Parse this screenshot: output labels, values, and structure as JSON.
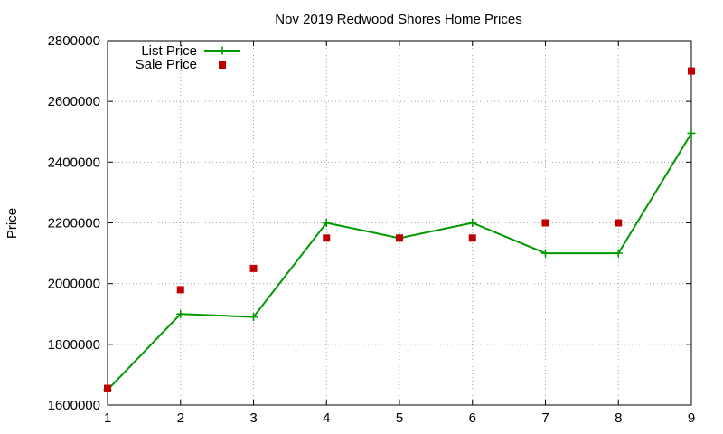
{
  "chart_data": {
    "type": "line",
    "title": "Nov 2019 Redwood Shores Home Prices",
    "xlabel": "",
    "ylabel": "Price",
    "x": [
      1,
      2,
      3,
      4,
      5,
      6,
      7,
      8,
      9
    ],
    "xlim": [
      1,
      9
    ],
    "ylim": [
      1600000,
      2800000
    ],
    "xticks": [
      "1",
      "2",
      "3",
      "4",
      "5",
      "6",
      "7",
      "8",
      "9"
    ],
    "yticks": [
      "1600000",
      "1800000",
      "2000000",
      "2200000",
      "2400000",
      "2600000",
      "2800000"
    ],
    "grid": true,
    "legend_position": "top-left",
    "series": [
      {
        "name": "List Price",
        "style": "line-plus-markers",
        "color": "#009900",
        "values": [
          1650000,
          1900000,
          1890000,
          2200000,
          2150000,
          2200000,
          2100000,
          2100000,
          2495000
        ]
      },
      {
        "name": "Sale Price",
        "style": "square-markers",
        "color": "#c00000",
        "values": [
          1655000,
          1980000,
          2050000,
          2150000,
          2150000,
          2150000,
          2200000,
          2200000,
          2700000
        ]
      }
    ]
  }
}
